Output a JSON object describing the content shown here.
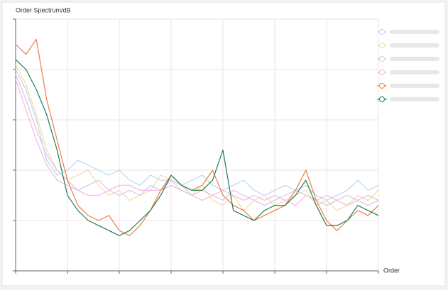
{
  "chart_data": {
    "type": "line",
    "title": "Order Spectrum/dB",
    "x_label": "Order",
    "x": [
      0,
      0.2,
      0.4,
      0.6,
      0.8,
      1.0,
      1.2,
      1.4,
      1.6,
      1.8,
      2.0,
      2.2,
      2.4,
      2.6,
      2.8,
      3.0,
      3.2,
      3.4,
      3.6,
      3.8,
      4.0,
      4.2,
      4.4,
      4.6,
      4.8,
      5.0,
      5.2,
      5.4,
      5.6,
      5.8,
      6.0,
      6.2,
      6.4,
      6.6,
      6.8,
      7.0
    ],
    "xlim": [
      0,
      7
    ],
    "xticks": [
      0,
      1,
      2,
      3,
      4,
      5,
      6,
      7
    ],
    "ylim": [
      0,
      5
    ],
    "yticks": [
      0,
      1,
      2,
      3,
      4,
      5
    ],
    "grid": true,
    "series": [
      {
        "color": "#b8d8ee",
        "values": [
          4.0,
          3.6,
          3.0,
          2.2,
          1.9,
          2.0,
          2.2,
          2.1,
          2.0,
          1.9,
          2.0,
          1.8,
          1.7,
          1.9,
          1.8,
          1.8,
          1.7,
          1.8,
          1.9,
          1.7,
          1.6,
          1.7,
          1.8,
          1.6,
          1.5,
          1.6,
          1.7,
          1.6,
          1.7,
          1.5,
          1.4,
          1.5,
          1.6,
          1.8,
          1.6,
          1.7
        ]
      },
      {
        "color": "#f4dca0",
        "values": [
          4.1,
          3.7,
          3.1,
          2.4,
          2.0,
          1.8,
          1.9,
          2.0,
          1.7,
          1.5,
          1.6,
          1.4,
          1.5,
          1.6,
          1.9,
          1.8,
          1.6,
          1.5,
          1.7,
          1.4,
          1.3,
          1.5,
          1.2,
          1.4,
          1.5,
          1.3,
          1.4,
          1.5,
          1.6,
          1.3,
          1.4,
          1.2,
          1.3,
          1.5,
          1.4,
          1.6
        ]
      },
      {
        "color": "#d8c4ec",
        "values": [
          3.9,
          3.4,
          2.8,
          2.3,
          2.0,
          1.8,
          1.6,
          1.7,
          1.8,
          1.6,
          1.5,
          1.6,
          1.5,
          1.7,
          1.6,
          1.7,
          1.6,
          1.5,
          1.6,
          1.5,
          1.4,
          1.6,
          1.5,
          1.4,
          1.3,
          1.4,
          1.5,
          1.6,
          1.5,
          1.4,
          1.3,
          1.4,
          1.5,
          1.4,
          1.3,
          1.4
        ]
      },
      {
        "color": "#f2b8e0",
        "values": [
          3.8,
          3.2,
          2.6,
          2.1,
          1.8,
          1.7,
          1.6,
          1.5,
          1.5,
          1.6,
          1.7,
          1.7,
          1.6,
          1.6,
          1.6,
          1.8,
          1.7,
          1.5,
          1.4,
          1.5,
          1.6,
          1.5,
          1.4,
          1.5,
          1.4,
          1.5,
          1.4,
          1.3,
          1.5,
          1.4,
          1.5,
          1.4,
          1.3,
          1.4,
          1.5,
          1.4
        ]
      },
      {
        "color": "#f07c45",
        "values": [
          4.5,
          4.3,
          4.6,
          3.4,
          2.6,
          1.8,
          1.3,
          1.1,
          1.0,
          1.1,
          0.8,
          0.7,
          0.9,
          1.2,
          1.6,
          1.9,
          1.7,
          1.6,
          1.7,
          2.0,
          1.5,
          1.3,
          1.2,
          1.0,
          1.1,
          1.2,
          1.3,
          1.6,
          2.0,
          1.4,
          1.0,
          0.8,
          1.0,
          1.2,
          1.1,
          1.3
        ]
      },
      {
        "color": "#1e7d55",
        "values": [
          4.2,
          4.0,
          3.6,
          3.1,
          2.4,
          1.5,
          1.2,
          1.0,
          0.9,
          0.8,
          0.7,
          0.8,
          1.0,
          1.2,
          1.5,
          1.9,
          1.7,
          1.6,
          1.6,
          1.8,
          2.4,
          1.2,
          1.1,
          1.0,
          1.2,
          1.3,
          1.3,
          1.5,
          1.8,
          1.3,
          0.9,
          0.9,
          1.0,
          1.3,
          1.2,
          1.1
        ]
      }
    ]
  }
}
